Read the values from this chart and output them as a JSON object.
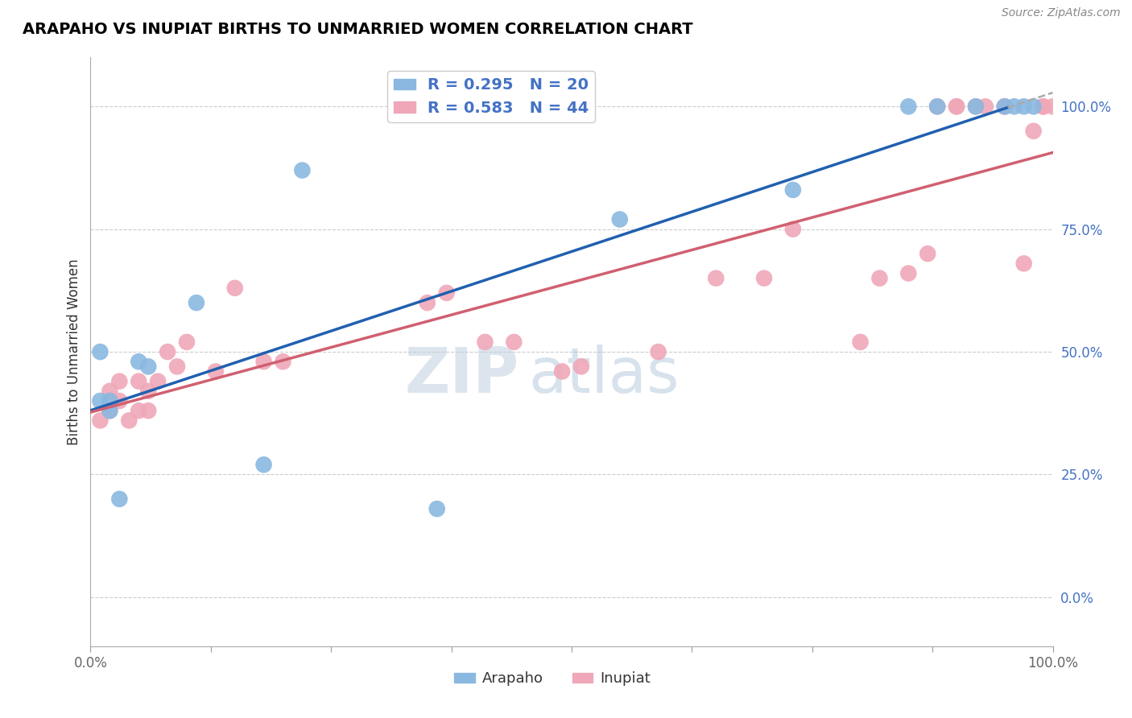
{
  "title": "ARAPAHO VS INUPIAT BIRTHS TO UNMARRIED WOMEN CORRELATION CHART",
  "source": "Source: ZipAtlas.com",
  "ylabel": "Births to Unmarried Women",
  "ytick_labels": [
    "0.0%",
    "25.0%",
    "50.0%",
    "75.0%",
    "100.0%"
  ],
  "ytick_values": [
    0,
    25,
    50,
    75,
    100
  ],
  "xlim": [
    0,
    100
  ],
  "ylim": [
    -10,
    110
  ],
  "arapaho_label": "R = 0.295   N = 20",
  "inupiat_label": "R = 0.583   N = 44",
  "arapaho_scatter_color": "#8ab8e0",
  "inupiat_scatter_color": "#f0a8b8",
  "arapaho_line_color": "#2060b0",
  "inupiat_line_color": "#d06070",
  "arapaho_bottom_label": "Arapaho",
  "inupiat_bottom_label": "Inupiat",
  "arapaho_x": [
    1,
    1,
    2,
    2,
    3,
    5,
    6,
    11,
    18,
    22,
    36,
    55,
    73,
    85,
    88,
    92,
    95,
    96,
    97,
    98
  ],
  "arapaho_y": [
    50,
    40,
    38,
    40,
    20,
    48,
    47,
    60,
    27,
    87,
    18,
    77,
    83,
    100,
    100,
    100,
    100,
    100,
    100,
    100
  ],
  "inupiat_x": [
    1,
    2,
    2,
    3,
    3,
    4,
    5,
    5,
    6,
    6,
    7,
    8,
    9,
    10,
    13,
    15,
    18,
    20,
    35,
    37,
    41,
    44,
    49,
    51,
    59,
    65,
    70,
    73,
    80,
    82,
    85,
    87,
    88,
    90,
    90,
    92,
    93,
    95,
    95,
    97,
    98,
    99,
    99,
    100
  ],
  "inupiat_y": [
    36,
    38,
    42,
    40,
    44,
    36,
    38,
    44,
    38,
    42,
    44,
    50,
    47,
    52,
    46,
    63,
    48,
    48,
    60,
    62,
    52,
    52,
    46,
    47,
    50,
    65,
    65,
    75,
    52,
    65,
    66,
    70,
    100,
    100,
    100,
    100,
    100,
    100,
    100,
    68,
    95,
    100,
    100,
    100
  ]
}
